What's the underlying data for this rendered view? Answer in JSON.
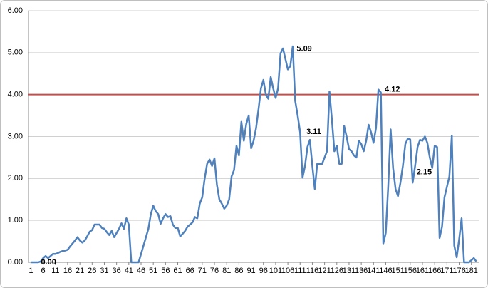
{
  "chart_data": {
    "type": "line",
    "x": [
      1,
      2,
      3,
      4,
      5,
      6,
      7,
      8,
      9,
      10,
      11,
      12,
      13,
      14,
      15,
      16,
      17,
      18,
      19,
      20,
      21,
      22,
      23,
      24,
      25,
      26,
      27,
      28,
      29,
      30,
      31,
      32,
      33,
      34,
      35,
      36,
      37,
      38,
      39,
      40,
      41,
      42,
      43,
      44,
      45,
      46,
      47,
      48,
      49,
      50,
      51,
      52,
      53,
      54,
      55,
      56,
      57,
      58,
      59,
      60,
      61,
      62,
      63,
      64,
      65,
      66,
      67,
      68,
      69,
      70,
      71,
      72,
      73,
      74,
      75,
      76,
      77,
      78,
      79,
      80,
      81,
      82,
      83,
      84,
      85,
      86,
      87,
      88,
      89,
      90,
      91,
      92,
      93,
      94,
      95,
      96,
      97,
      98,
      99,
      100,
      101,
      102,
      103,
      104,
      105,
      106,
      107,
      108,
      109,
      110,
      111,
      112,
      113,
      114,
      115,
      116,
      117,
      118,
      119,
      120,
      121,
      122,
      123,
      124,
      125,
      126,
      127,
      128,
      129,
      130,
      131,
      132,
      133,
      134,
      135,
      136,
      137,
      138,
      139,
      140,
      141,
      142,
      143,
      144,
      145,
      146,
      147,
      148,
      149,
      150,
      151,
      152,
      153,
      154,
      155,
      156,
      157,
      158,
      159,
      160,
      161,
      162,
      163,
      164,
      165,
      166,
      167,
      168,
      169,
      170,
      171,
      172,
      173,
      174,
      175,
      176,
      177,
      178,
      179,
      180,
      181,
      182,
      183
    ],
    "series": [
      {
        "color": "#4f81bd",
        "values": [
          0,
          0,
          0,
          0,
          0.02,
          0.1,
          0.15,
          0.1,
          0.15,
          0.2,
          0.2,
          0.22,
          0.25,
          0.27,
          0.28,
          0.3,
          0.38,
          0.45,
          0.52,
          0.6,
          0.52,
          0.47,
          0.52,
          0.62,
          0.73,
          0.77,
          0.9,
          0.9,
          0.9,
          0.82,
          0.8,
          0.72,
          0.65,
          0.75,
          0.6,
          0.7,
          0.8,
          0.93,
          0.8,
          1.05,
          0.9,
          0,
          0,
          0,
          0,
          0.2,
          0.4,
          0.6,
          0.8,
          1.15,
          1.35,
          1.22,
          1.15,
          0.92,
          1.05,
          1.15,
          1.08,
          1.1,
          0.9,
          0.82,
          0.82,
          0.62,
          0.68,
          0.75,
          0.85,
          0.9,
          0.95,
          1.08,
          1.05,
          1.4,
          1.55,
          2.0,
          2.35,
          2.45,
          2.3,
          2.48,
          1.85,
          1.5,
          1.4,
          1.28,
          1.35,
          1.5,
          2.05,
          2.2,
          2.78,
          2.55,
          3.35,
          2.9,
          3.3,
          3.5,
          2.72,
          2.9,
          3.2,
          3.65,
          4.15,
          4.35,
          4.0,
          3.9,
          4.42,
          4.15,
          3.92,
          4.15,
          4.98,
          5.1,
          4.85,
          4.6,
          4.68,
          5.15,
          3.85,
          3.5,
          3.1,
          2.02,
          2.3,
          2.75,
          2.92,
          2.3,
          1.75,
          2.35,
          2.35,
          2.35,
          2.5,
          2.65,
          4.07,
          3.4,
          2.65,
          2.78,
          2.35,
          2.35,
          3.25,
          3.0,
          2.7,
          2.65,
          2.55,
          2.5,
          2.9,
          2.82,
          2.65,
          2.9,
          3.28,
          3.1,
          2.85,
          3.2,
          4.12,
          4.05,
          0.45,
          0.7,
          1.8,
          3.17,
          2.25,
          1.75,
          1.58,
          1.9,
          2.3,
          2.82,
          2.95,
          2.93,
          1.9,
          2.3,
          2.75,
          2.92,
          2.9,
          3.0,
          2.85,
          2.5,
          2.25,
          2.78,
          2.75,
          0.58,
          0.85,
          1.55,
          1.8,
          2.05,
          3.02,
          0.4,
          0.12,
          0.55,
          1.05,
          0,
          0,
          0,
          0.05,
          0.1,
          0.02
        ]
      }
    ],
    "threshold": {
      "value": 4,
      "color": "#c0504d"
    },
    "annotations": [
      {
        "label": "5.09",
        "x": 109,
        "y": 5.09,
        "color": "#e02020"
      },
      {
        "label": "3.11",
        "x": 113,
        "y": 3.11,
        "color": "#e02020"
      },
      {
        "label": "4.12",
        "x": 145,
        "y": 4.12,
        "color": "#e02020"
      },
      {
        "label": "2.15",
        "x": 158,
        "y": 2.15,
        "color": "#e02020"
      },
      {
        "label": "0.00",
        "x": 4.5,
        "y": 0,
        "color": "#404040"
      }
    ],
    "xlim": [
      0,
      184
    ],
    "xticks": [
      1,
      6,
      11,
      16,
      21,
      26,
      31,
      36,
      41,
      46,
      51,
      56,
      61,
      66,
      71,
      76,
      81,
      86,
      91,
      96,
      101,
      106,
      111,
      116,
      121,
      126,
      131,
      136,
      141,
      146,
      151,
      156,
      161,
      166,
      171,
      176,
      181
    ],
    "ylim": [
      0,
      6
    ],
    "yticks": [
      {
        "value": 0,
        "label": "0.00"
      },
      {
        "value": 1,
        "label": "1.00"
      },
      {
        "value": 2,
        "label": "2.00"
      },
      {
        "value": 3,
        "label": "3.00"
      },
      {
        "value": 4,
        "label": "4.00"
      },
      {
        "value": 5,
        "label": "5.00"
      },
      {
        "value": 6,
        "label": "6.00"
      }
    ],
    "grid": true
  }
}
